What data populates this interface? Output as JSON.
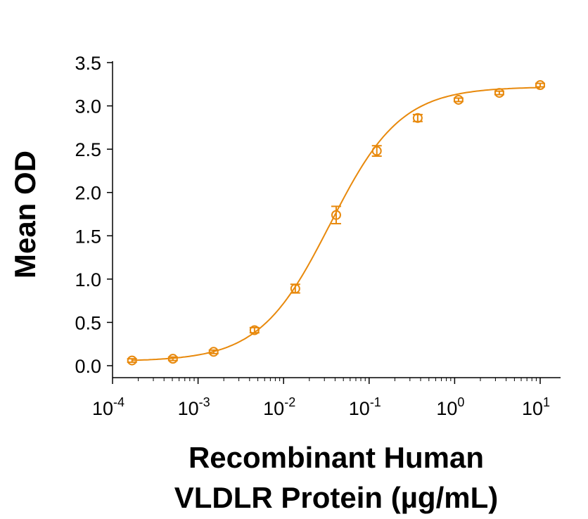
{
  "chart_data": {
    "type": "scatter",
    "title": "",
    "ylabel": "Mean OD",
    "xlabel_lines": [
      "Recombinant Human",
      "VLDLR Protein (µg/mL)"
    ],
    "x_scale": "log",
    "xlim": [
      0.0001,
      10
    ],
    "ylim": [
      0,
      3.5
    ],
    "grid": false,
    "x_ticks": [
      {
        "base": "10",
        "exp": "-4"
      },
      {
        "base": "10",
        "exp": "-3"
      },
      {
        "base": "10",
        "exp": "-2"
      },
      {
        "base": "10",
        "exp": "-1"
      },
      {
        "base": "10",
        "exp": "0"
      },
      {
        "base": "10",
        "exp": "1"
      }
    ],
    "y_ticks": [
      "0.0",
      "0.5",
      "1.0",
      "1.5",
      "2.0",
      "2.5",
      "3.0",
      "3.5"
    ],
    "color": "#E8890C",
    "marker": "open-circle",
    "fit_line": "4-parameter logistic",
    "points": [
      {
        "x": 0.000169,
        "y": 0.06,
        "err": 0.02
      },
      {
        "x": 0.000508,
        "y": 0.08,
        "err": 0.02
      },
      {
        "x": 0.00152,
        "y": 0.16,
        "err": 0.02
      },
      {
        "x": 0.00457,
        "y": 0.41,
        "err": 0.03
      },
      {
        "x": 0.0137,
        "y": 0.89,
        "err": 0.05
      },
      {
        "x": 0.0412,
        "y": 1.74,
        "err": 0.1
      },
      {
        "x": 0.123,
        "y": 2.48,
        "err": 0.06
      },
      {
        "x": 0.37,
        "y": 2.86,
        "err": 0.04
      },
      {
        "x": 1.11,
        "y": 3.07,
        "err": 0.02
      },
      {
        "x": 3.33,
        "y": 3.15,
        "err": 0.02
      },
      {
        "x": 10,
        "y": 3.24,
        "err": 0.02
      }
    ]
  }
}
